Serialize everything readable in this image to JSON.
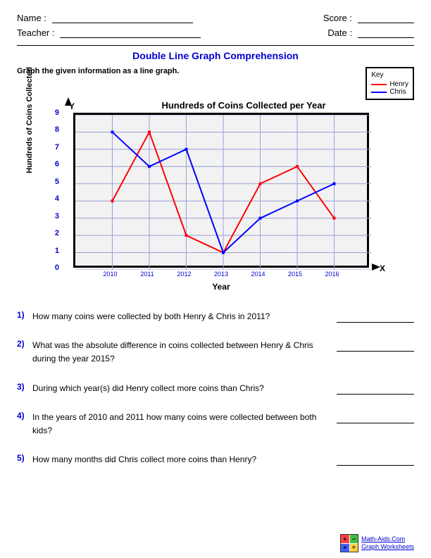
{
  "header": {
    "name_label": "Name :",
    "teacher_label": "Teacher :",
    "score_label": "Score :",
    "date_label": "Date :"
  },
  "title": "Double Line Graph Comprehension",
  "title_color": "#0000d0",
  "instruction": "Graph the given information as a line graph.",
  "legend": {
    "title": "Key",
    "items": [
      {
        "label": "Henry",
        "color": "#ff0000"
      },
      {
        "label": "Chris",
        "color": "#0000ff"
      }
    ]
  },
  "chart": {
    "type": "line",
    "title": "Hundreds of Coins Collected per Year",
    "x_axis_label": "Year",
    "y_axis_label": "Hundreds of Coins Collected",
    "x_symbol": "X",
    "y_symbol": "Y",
    "plot_bg": "#f2f2f2",
    "grid_color": "#9aa0d8",
    "border_color": "#000000",
    "categories": [
      "2010",
      "2011",
      "2012",
      "2013",
      "2014",
      "2015",
      "2016"
    ],
    "y_min": 0,
    "y_max": 9,
    "y_step": 1,
    "y_tick_color": "#0000d0",
    "x_tick_color": "#0000d0",
    "series": [
      {
        "name": "Henry",
        "color": "#ff0000",
        "values": [
          4,
          8,
          2,
          1,
          5,
          6,
          3
        ],
        "marker": "square"
      },
      {
        "name": "Chris",
        "color": "#0000ff",
        "values": [
          8,
          6,
          7,
          1,
          3,
          4,
          5
        ],
        "marker": "square"
      }
    ],
    "line_width": 2,
    "marker_size": 4
  },
  "questions": [
    {
      "num": "1)",
      "text": "How many coins were collected by both Henry & Chris in 2011?"
    },
    {
      "num": "2)",
      "text": "What was the absolute difference in coins collected between Henry & Chris during the year 2015?"
    },
    {
      "num": "3)",
      "text": "During which year(s) did Henry collect more coins than Chris?"
    },
    {
      "num": "4)",
      "text": "In the years of 2010 and 2011 how many coins were collected between both kids?"
    },
    {
      "num": "5)",
      "text": "How many months did Chris collect more coins than Henry?"
    }
  ],
  "question_num_color": "#0000d0",
  "footer": {
    "site": "Math-Aids.Com",
    "subtitle": "Graph Worksheets",
    "icon_colors": [
      "#ff4040",
      "#40c040",
      "#4060ff",
      "#ffd040"
    ],
    "icon_symbols": [
      "+",
      "−",
      "×",
      "÷"
    ]
  }
}
